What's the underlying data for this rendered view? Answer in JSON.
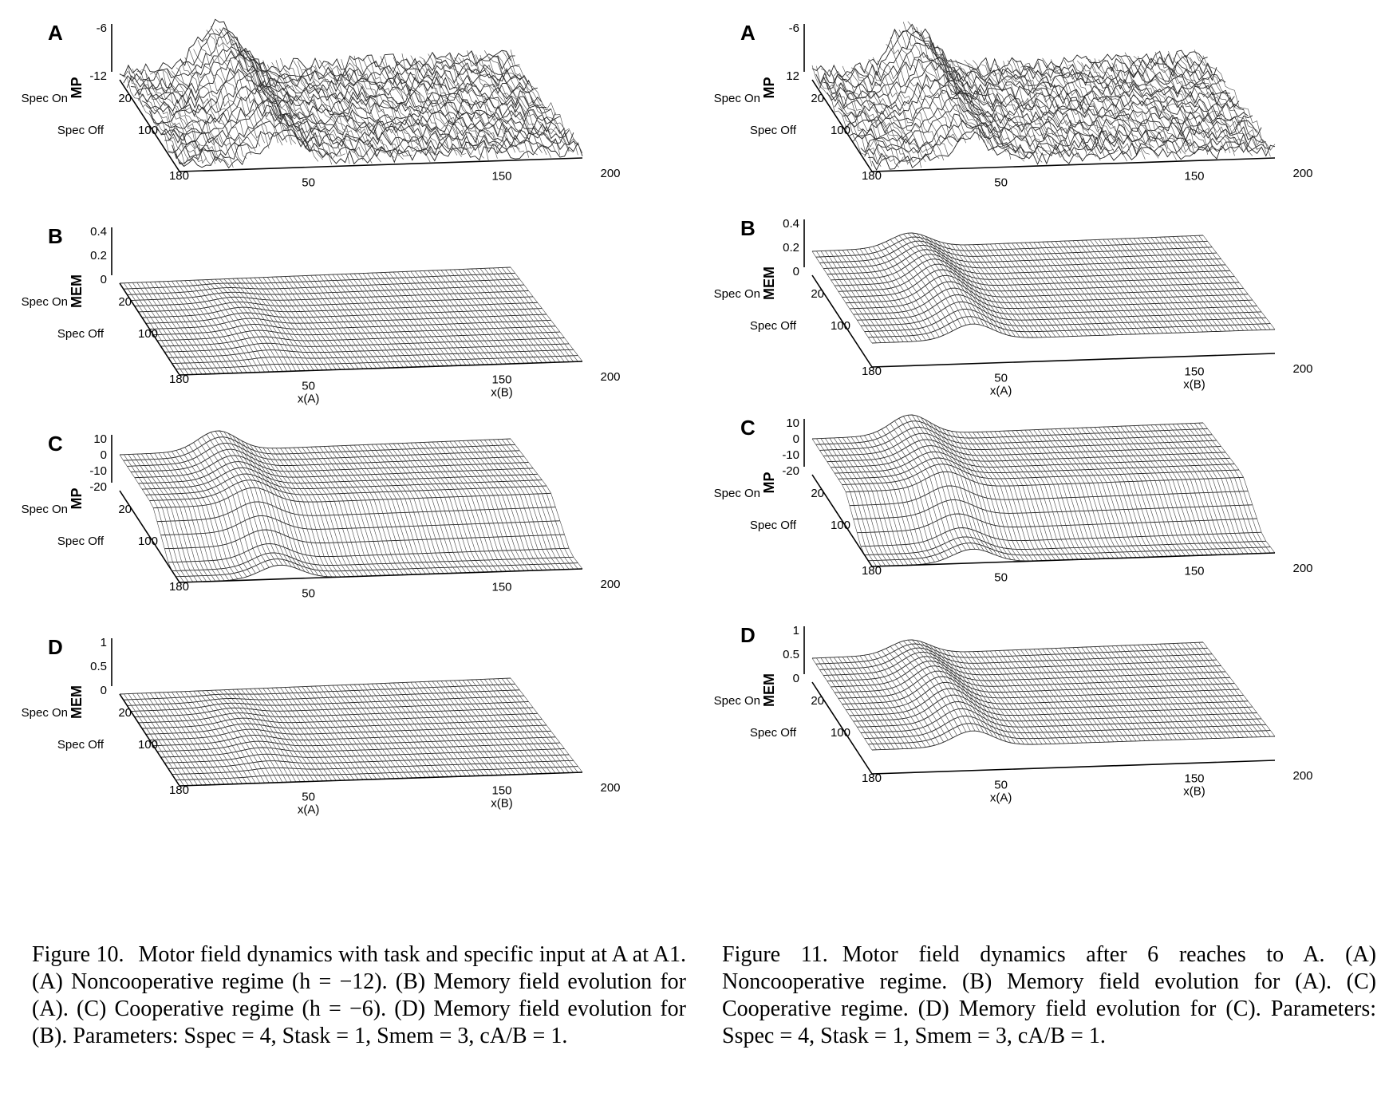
{
  "figures": [
    {
      "id": "fig10",
      "panels": [
        {
          "letter": "A",
          "zlabel": "MP",
          "zticks": [
            "-6",
            "-12"
          ],
          "yticks": [
            "Spec On",
            "20",
            "Spec Off",
            "100",
            "180"
          ],
          "xticks": [
            "50",
            "150",
            "200"
          ],
          "xaxis_labels": [],
          "surface": "noisy-peak"
        },
        {
          "letter": "B",
          "zlabel": "MEM",
          "zticks": [
            "0.4",
            "0.2",
            "0"
          ],
          "yticks": [
            "Spec On",
            "20",
            "Spec Off",
            "100",
            "180"
          ],
          "xticks": [
            "50",
            "150",
            "200"
          ],
          "xaxis_labels": [
            "x(A)",
            "x(B)"
          ],
          "surface": "flat-bump"
        },
        {
          "letter": "C",
          "zlabel": "MP",
          "zticks": [
            "10",
            "0",
            "-10",
            "-20"
          ],
          "yticks": [
            "Spec On",
            "20",
            "Spec Off",
            "100",
            "180"
          ],
          "xticks": [
            "50",
            "150",
            "200"
          ],
          "xaxis_labels": [],
          "surface": "cliff-peak"
        },
        {
          "letter": "D",
          "zlabel": "MEM",
          "zticks": [
            "1",
            "0.5",
            "0"
          ],
          "yticks": [
            "Spec On",
            "20",
            "Spec Off",
            "100",
            "180"
          ],
          "xticks": [
            "50",
            "150",
            "200"
          ],
          "xaxis_labels": [
            "x(A)",
            "x(B)"
          ],
          "surface": "flat-bump"
        }
      ],
      "caption": {
        "number": "Figure 10.",
        "text": "Motor field dynamics with task and specific input at A at A1. (A) Noncooperative regime (h = −12). (B) Memory field evolution for (A). (C) Cooperative regime (h = −6). (D) Memory field evolution for (B). Parameters: Sspec = 4, Stask = 1, Smem = 3, cA/B = 1."
      }
    },
    {
      "id": "fig11",
      "panels": [
        {
          "letter": "A",
          "zlabel": "MP",
          "zticks": [
            "-6",
            "12"
          ],
          "yticks": [
            "Spec On",
            "20",
            "Spec Off",
            "100",
            "180"
          ],
          "xticks": [
            "50",
            "150",
            "200"
          ],
          "xaxis_labels": [],
          "surface": "noisy-peak"
        },
        {
          "letter": "B",
          "zlabel": "MEM",
          "zticks": [
            "0.4",
            "0.2",
            "0"
          ],
          "yticks": [
            "Spec On",
            "20",
            "Spec Off",
            "100",
            "180"
          ],
          "xticks": [
            "50",
            "150",
            "200"
          ],
          "xaxis_labels": [
            "x(A)",
            "x(B)"
          ],
          "surface": "raised-bump"
        },
        {
          "letter": "C",
          "zlabel": "MP",
          "zticks": [
            "10",
            "0",
            "-10",
            "-20"
          ],
          "yticks": [
            "Spec On",
            "20",
            "Spec Off",
            "100",
            "180"
          ],
          "xticks": [
            "50",
            "150",
            "200"
          ],
          "xaxis_labels": [],
          "surface": "cliff-peak"
        },
        {
          "letter": "D",
          "zlabel": "MEM",
          "zticks": [
            "1",
            "0.5",
            "0"
          ],
          "yticks": [
            "Spec On",
            "20",
            "Spec Off",
            "100",
            "180"
          ],
          "xticks": [
            "50",
            "150",
            "200"
          ],
          "xaxis_labels": [
            "x(A)",
            "x(B)"
          ],
          "surface": "raised-bump"
        }
      ],
      "caption": {
        "number": "Figure 11.",
        "text": "Motor field dynamics after 6 reaches to A. (A) Noncooperative regime. (B) Memory field evolution for (A). (C) Cooperative regime. (D) Memory field evolution for (C). Parameters: Sspec = 4, Stask = 1, Smem = 3, cA/B = 1."
      }
    }
  ]
}
